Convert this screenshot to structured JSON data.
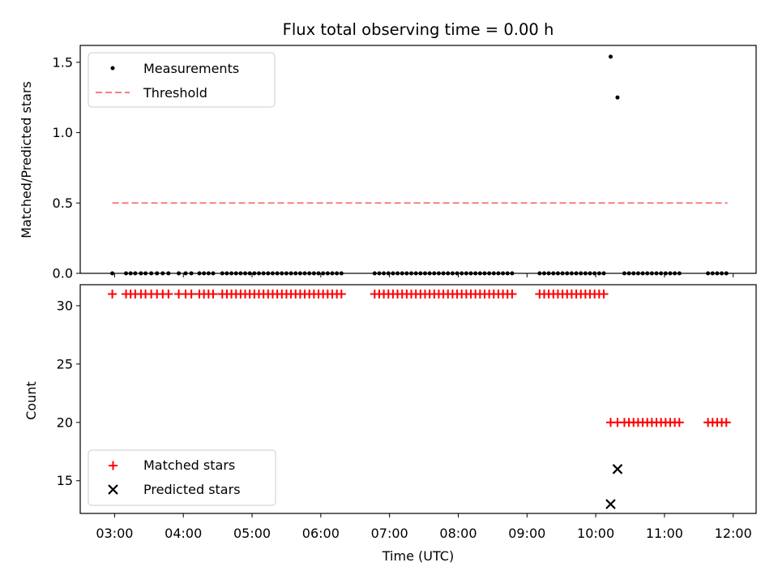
{
  "figure_title": "Flux total observing time = 0.00 h",
  "chart_data": [
    {
      "type": "scatter",
      "panel": "top",
      "title": "Flux total observing time = 0.00 h",
      "xlabel": "",
      "ylabel": "Matched/Predicted stars",
      "xlim": [
        "02:30",
        "12:20"
      ],
      "ylim": [
        0,
        1.62
      ],
      "yticks": [
        "0.0",
        "0.5",
        "1.0",
        "1.5"
      ],
      "grid": false,
      "legend": "top-left",
      "series": [
        {
          "name": "Measurements",
          "type": "scatter",
          "color": "#000000",
          "x": [
            "02:58",
            "03:10",
            "03:14",
            "03:18",
            "03:23",
            "03:27",
            "03:32",
            "03:37",
            "03:42",
            "03:47",
            "03:56",
            "04:02",
            "04:07",
            "04:14",
            "04:18",
            "04:22",
            "04:26",
            "04:34",
            "04:38",
            "04:42",
            "04:46",
            "04:50",
            "04:54",
            "04:58",
            "05:02",
            "05:06",
            "05:10",
            "05:14",
            "05:18",
            "05:22",
            "05:26",
            "05:30",
            "05:34",
            "05:38",
            "05:42",
            "05:46",
            "05:50",
            "05:54",
            "05:58",
            "06:02",
            "06:06",
            "06:10",
            "06:14",
            "06:18",
            "06:47",
            "06:51",
            "06:55",
            "06:59",
            "07:03",
            "07:07",
            "07:11",
            "07:15",
            "07:19",
            "07:23",
            "07:27",
            "07:31",
            "07:35",
            "07:39",
            "07:43",
            "07:47",
            "07:51",
            "07:55",
            "07:59",
            "08:03",
            "08:07",
            "08:11",
            "08:15",
            "08:19",
            "08:23",
            "08:27",
            "08:31",
            "08:35",
            "08:39",
            "08:43",
            "08:47",
            "09:11",
            "09:15",
            "09:19",
            "09:23",
            "09:27",
            "09:31",
            "09:35",
            "09:39",
            "09:43",
            "09:47",
            "09:51",
            "09:55",
            "09:59",
            "10:03",
            "10:07",
            "10:13",
            "10:19",
            "10:25",
            "10:29",
            "10:33",
            "10:37",
            "10:41",
            "10:45",
            "10:49",
            "10:53",
            "10:57",
            "11:01",
            "11:05",
            "11:09",
            "11:13",
            "11:38",
            "11:42",
            "11:46",
            "11:50",
            "11:54"
          ],
          "y": [
            0,
            0,
            0,
            0,
            0,
            0,
            0,
            0,
            0,
            0,
            0,
            0,
            0,
            0,
            0,
            0,
            0,
            0,
            0,
            0,
            0,
            0,
            0,
            0,
            0,
            0,
            0,
            0,
            0,
            0,
            0,
            0,
            0,
            0,
            0,
            0,
            0,
            0,
            0,
            0,
            0,
            0,
            0,
            0,
            0,
            0,
            0,
            0,
            0,
            0,
            0,
            0,
            0,
            0,
            0,
            0,
            0,
            0,
            0,
            0,
            0,
            0,
            0,
            0,
            0,
            0,
            0,
            0,
            0,
            0,
            0,
            0,
            0,
            0,
            0,
            0,
            0,
            0,
            0,
            0,
            0,
            0,
            0,
            0,
            0,
            0,
            0,
            0,
            0,
            0,
            1.54,
            1.25,
            0,
            0,
            0,
            0,
            0,
            0,
            0,
            0,
            0,
            0,
            0,
            0,
            0,
            0,
            0,
            0,
            0,
            0
          ]
        },
        {
          "name": "Threshold",
          "type": "line",
          "style": "dashed",
          "color": "#f08080",
          "x": [
            "02:58",
            "11:55"
          ],
          "y": [
            0.5,
            0.5
          ]
        }
      ]
    },
    {
      "type": "scatter",
      "panel": "bottom",
      "xlabel": "Time (UTC)",
      "ylabel": "Count",
      "xlim": [
        "02:30",
        "12:20"
      ],
      "ylim": [
        12.2,
        31.8
      ],
      "xticks": [
        "03:00",
        "04:00",
        "05:00",
        "06:00",
        "07:00",
        "08:00",
        "09:00",
        "10:00",
        "11:00",
        "12:00"
      ],
      "yticks": [
        "15",
        "20",
        "25",
        "30"
      ],
      "grid": false,
      "legend": "bottom-left",
      "series": [
        {
          "name": "Matched stars",
          "type": "scatter",
          "marker": "plus",
          "color": "#ff0000",
          "x": [
            "02:58",
            "03:10",
            "03:14",
            "03:18",
            "03:23",
            "03:27",
            "03:32",
            "03:37",
            "03:42",
            "03:47",
            "03:56",
            "04:02",
            "04:07",
            "04:14",
            "04:18",
            "04:22",
            "04:26",
            "04:34",
            "04:38",
            "04:42",
            "04:46",
            "04:50",
            "04:54",
            "04:58",
            "05:02",
            "05:06",
            "05:10",
            "05:14",
            "05:18",
            "05:22",
            "05:26",
            "05:30",
            "05:34",
            "05:38",
            "05:42",
            "05:46",
            "05:50",
            "05:54",
            "05:58",
            "06:02",
            "06:06",
            "06:10",
            "06:14",
            "06:18",
            "06:47",
            "06:51",
            "06:55",
            "06:59",
            "07:03",
            "07:07",
            "07:11",
            "07:15",
            "07:19",
            "07:23",
            "07:27",
            "07:31",
            "07:35",
            "07:39",
            "07:43",
            "07:47",
            "07:51",
            "07:55",
            "07:59",
            "08:03",
            "08:07",
            "08:11",
            "08:15",
            "08:19",
            "08:23",
            "08:27",
            "08:31",
            "08:35",
            "08:39",
            "08:43",
            "08:47",
            "09:11",
            "09:15",
            "09:19",
            "09:23",
            "09:27",
            "09:31",
            "09:35",
            "09:39",
            "09:43",
            "09:47",
            "09:51",
            "09:55",
            "09:59",
            "10:03",
            "10:07",
            "10:13",
            "10:19",
            "10:25",
            "10:29",
            "10:33",
            "10:37",
            "10:41",
            "10:45",
            "10:49",
            "10:53",
            "10:57",
            "11:01",
            "11:05",
            "11:09",
            "11:13",
            "11:38",
            "11:42",
            "11:46",
            "11:50",
            "11:54"
          ],
          "y": [
            31,
            31,
            31,
            31,
            31,
            31,
            31,
            31,
            31,
            31,
            31,
            31,
            31,
            31,
            31,
            31,
            31,
            31,
            31,
            31,
            31,
            31,
            31,
            31,
            31,
            31,
            31,
            31,
            31,
            31,
            31,
            31,
            31,
            31,
            31,
            31,
            31,
            31,
            31,
            31,
            31,
            31,
            31,
            31,
            31,
            31,
            31,
            31,
            31,
            31,
            31,
            31,
            31,
            31,
            31,
            31,
            31,
            31,
            31,
            31,
            31,
            31,
            31,
            31,
            31,
            31,
            31,
            31,
            31,
            31,
            31,
            31,
            31,
            31,
            31,
            31,
            31,
            31,
            31,
            31,
            31,
            31,
            31,
            31,
            31,
            31,
            31,
            31,
            31,
            31,
            20,
            20,
            20,
            20,
            20,
            20,
            20,
            20,
            20,
            20,
            20,
            20,
            20,
            20,
            20,
            20,
            20,
            20,
            20,
            20
          ]
        },
        {
          "name": "Predicted stars",
          "type": "scatter",
          "marker": "x",
          "color": "#000000",
          "x": [
            "10:13",
            "10:19"
          ],
          "y": [
            13,
            16
          ]
        }
      ]
    }
  ]
}
